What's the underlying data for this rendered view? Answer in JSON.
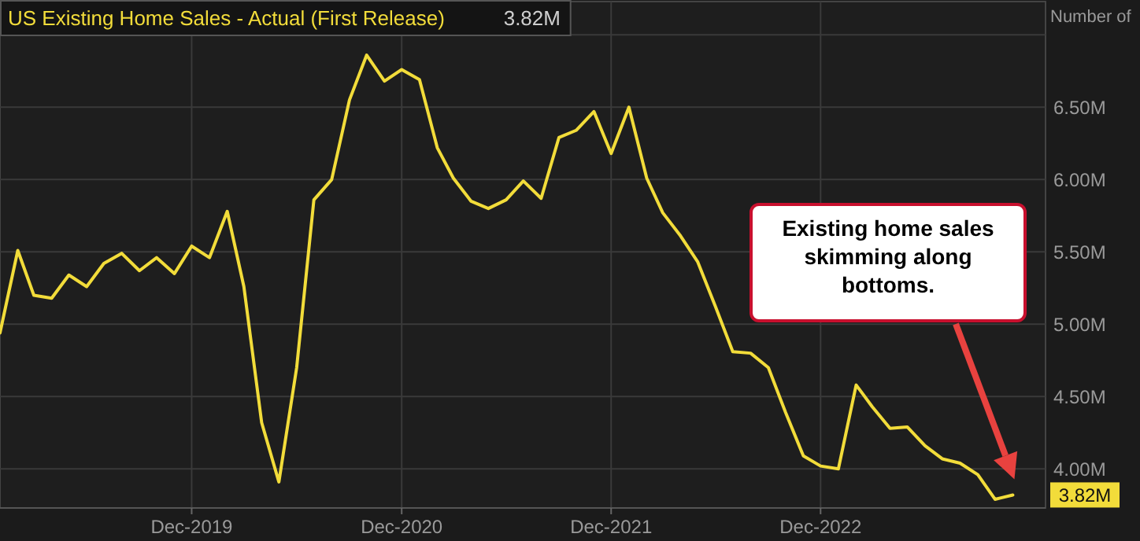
{
  "chart_data": {
    "type": "line",
    "title": "US Existing Home Sales - Actual (First Release)",
    "ylabel": "Number of",
    "x": [
      "2019-01",
      "2019-02",
      "2019-03",
      "2019-04",
      "2019-05",
      "2019-06",
      "2019-07",
      "2019-08",
      "2019-09",
      "2019-10",
      "2019-11",
      "2019-12",
      "2020-01",
      "2020-02",
      "2020-03",
      "2020-04",
      "2020-05",
      "2020-06",
      "2020-07",
      "2020-08",
      "2020-09",
      "2020-10",
      "2020-11",
      "2020-12",
      "2021-01",
      "2021-02",
      "2021-03",
      "2021-04",
      "2021-05",
      "2021-06",
      "2021-07",
      "2021-08",
      "2021-09",
      "2021-10",
      "2021-11",
      "2021-12",
      "2022-01",
      "2022-02",
      "2022-03",
      "2022-04",
      "2022-05",
      "2022-06",
      "2022-07",
      "2022-08",
      "2022-09",
      "2022-10",
      "2022-11",
      "2022-12",
      "2023-01",
      "2023-02",
      "2023-03",
      "2023-04",
      "2023-05",
      "2023-06",
      "2023-07",
      "2023-08",
      "2023-09",
      "2023-10",
      "2023-11"
    ],
    "series": [
      {
        "color": "#f2dc3a",
        "values": [
          4.94,
          5.51,
          5.2,
          5.18,
          5.34,
          5.26,
          5.42,
          5.49,
          5.37,
          5.46,
          5.35,
          5.54,
          5.46,
          5.78,
          5.26,
          4.32,
          3.91,
          4.7,
          5.86,
          6.0,
          6.55,
          6.86,
          6.68,
          6.76,
          6.69,
          6.22,
          6.01,
          5.85,
          5.8,
          5.86,
          5.99,
          5.87,
          6.29,
          6.34,
          6.47,
          6.18,
          6.5,
          6.01,
          5.77,
          5.61,
          5.43,
          5.12,
          4.81,
          4.8,
          4.7,
          4.39,
          4.09,
          4.02,
          4.0,
          4.58,
          4.43,
          4.28,
          4.29,
          4.16,
          4.07,
          4.04,
          3.96,
          3.79,
          3.82
        ]
      }
    ],
    "xlim": [
      "2019-01-01",
      "2023-12-28"
    ],
    "xticks": [
      {
        "value": "2019-12",
        "label": "Dec-2019"
      },
      {
        "value": "2020-12",
        "label": "Dec-2020"
      },
      {
        "value": "2021-12",
        "label": "Dec-2021"
      },
      {
        "value": "2022-12",
        "label": "Dec-2022"
      }
    ],
    "ylim": [
      3.73,
      7.23
    ],
    "yticks": [
      {
        "value": 4,
        "label": "4.00M"
      },
      {
        "value": 4.5,
        "label": "4.50M"
      },
      {
        "value": 5,
        "label": "5.00M"
      },
      {
        "value": 5.5,
        "label": "5.50M"
      },
      {
        "value": 6,
        "label": "6.00M"
      },
      {
        "value": 6.5,
        "label": "6.50M"
      },
      {
        "value": 7,
        "label": null
      }
    ],
    "grid": true,
    "line_style": "solid",
    "annotations": [
      "3.82M",
      {
        "text": "3.82M",
        "x": "2023-11",
        "y": 3.82
      },
      "Existing home sales skimming along bottoms."
    ]
  }
}
